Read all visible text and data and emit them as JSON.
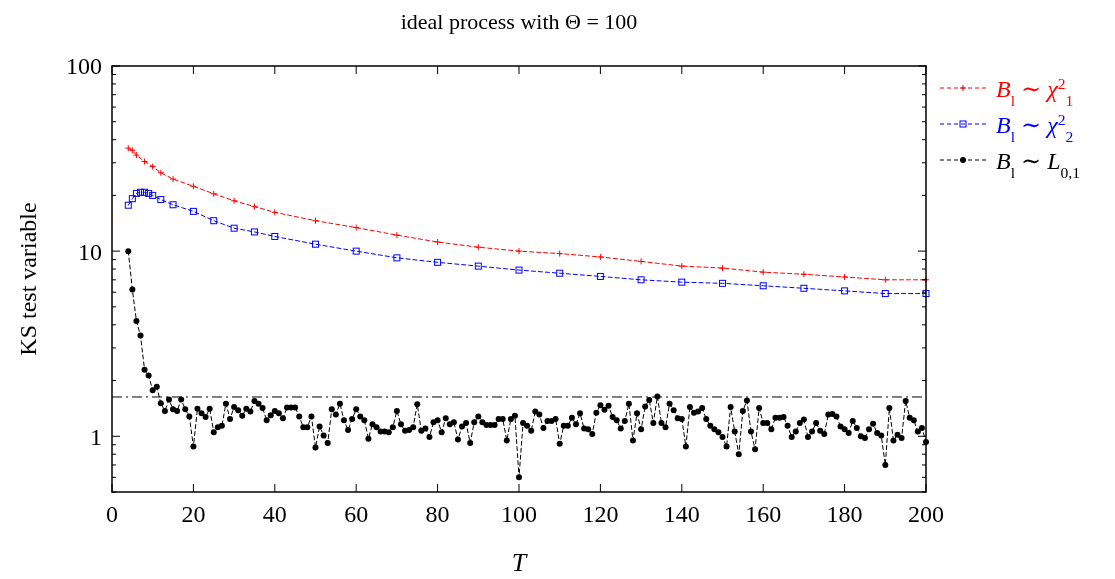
{
  "chart_data": {
    "type": "line",
    "title": "ideal process with Θ = 100",
    "xlabel": "T",
    "ylabel": "KS test variable",
    "log": "y",
    "xlim": [
      0,
      200
    ],
    "xticks": [
      0,
      20,
      40,
      60,
      80,
      100,
      120,
      140,
      160,
      180,
      200
    ],
    "ylim": [
      0.5,
      100
    ],
    "yticks": [
      {
        "value": 0.5,
        "label": null
      },
      {
        "value": 0.6,
        "label": null
      },
      {
        "value": 0.7,
        "label": null
      },
      {
        "value": 0.8,
        "label": null
      },
      {
        "value": 0.9,
        "label": null
      },
      1,
      {
        "value": 2,
        "label": null
      },
      {
        "value": 3,
        "label": null
      },
      {
        "value": 4,
        "label": null
      },
      {
        "value": 5,
        "label": null
      },
      {
        "value": 6,
        "label": null
      },
      {
        "value": 7,
        "label": null
      },
      {
        "value": 8,
        "label": null
      },
      {
        "value": 9,
        "label": null
      },
      10,
      {
        "value": 20,
        "label": null
      },
      {
        "value": 30,
        "label": null
      },
      {
        "value": 40,
        "label": null
      },
      {
        "value": 50,
        "label": null
      },
      {
        "value": 60,
        "label": null
      },
      {
        "value": 70,
        "label": null
      },
      {
        "value": 80,
        "label": null
      },
      {
        "value": 90,
        "label": null
      },
      100
    ],
    "grid": false,
    "legend": "top right",
    "line_style": "dashed",
    "ref_lines": [
      {
        "axis": "y",
        "value": 1.63,
        "color": "#000000",
        "line_style": "dashed"
      }
    ],
    "series": [
      {
        "name": "B$_{l}$ ∼ χ$^{2}$$_{1}$",
        "color": "#ff0000",
        "marker": "cross",
        "x": [
          4,
          5,
          6,
          8,
          10,
          12,
          15,
          20,
          25,
          30,
          35,
          40,
          50,
          60,
          70,
          80,
          90,
          100,
          110,
          120,
          130,
          140,
          150,
          160,
          170,
          180,
          190,
          200
        ],
        "values": [
          36,
          35,
          33,
          30.5,
          28.6,
          26.5,
          24.5,
          22.4,
          20.4,
          18.7,
          17.4,
          16.2,
          14.6,
          13.4,
          12.2,
          11.2,
          10.5,
          10,
          9.7,
          9.3,
          8.8,
          8.3,
          8.1,
          7.7,
          7.5,
          7.25,
          7,
          7
        ]
      },
      {
        "name": "B$_{l}$ ∼ χ$^{2}$$_{2}$",
        "color": "#0000ff",
        "marker": "square",
        "x": [
          4,
          5,
          6,
          7,
          8,
          9,
          10,
          12,
          15,
          20,
          25,
          30,
          35,
          40,
          50,
          60,
          70,
          80,
          90,
          100,
          110,
          120,
          130,
          140,
          150,
          160,
          170,
          180,
          190,
          200
        ],
        "values": [
          17.7,
          19.2,
          20.5,
          20.8,
          20.8,
          20.5,
          20,
          19,
          17.8,
          16.4,
          14.6,
          13.3,
          12.7,
          12,
          10.9,
          10,
          9.2,
          8.7,
          8.3,
          7.9,
          7.6,
          7.3,
          7,
          6.8,
          6.7,
          6.5,
          6.3,
          6.1,
          5.9,
          5.9
        ]
      },
      {
        "name": "B$_{l}$ ∼ L$_{0,1}$",
        "color": "#000000",
        "marker": "circle",
        "x": [
          4,
          5,
          6,
          7,
          8,
          9,
          10,
          11,
          12,
          13,
          14,
          15,
          16,
          17,
          18,
          19,
          20,
          21,
          22,
          23,
          24,
          25,
          26,
          27,
          28,
          29,
          30,
          31,
          32,
          33,
          34,
          35,
          36,
          37,
          38,
          39,
          40,
          41,
          42,
          43,
          44,
          45,
          46,
          47,
          48,
          49,
          50,
          51,
          52,
          53,
          54,
          55,
          56,
          57,
          58,
          59,
          60,
          61,
          62,
          63,
          64,
          65,
          66,
          67,
          68,
          69,
          70,
          71,
          72,
          73,
          74,
          75,
          76,
          77,
          78,
          79,
          80,
          81,
          82,
          83,
          84,
          85,
          86,
          87,
          88,
          89,
          90,
          91,
          92,
          93,
          94,
          95,
          96,
          97,
          98,
          99,
          100,
          101,
          102,
          103,
          104,
          105,
          106,
          107,
          108,
          109,
          110,
          111,
          112,
          113,
          114,
          115,
          116,
          117,
          118,
          119,
          120,
          121,
          122,
          123,
          124,
          125,
          126,
          127,
          128,
          129,
          130,
          131,
          132,
          133,
          134,
          135,
          136,
          137,
          138,
          139,
          140,
          141,
          142,
          143,
          144,
          145,
          146,
          147,
          148,
          149,
          150,
          151,
          152,
          153,
          154,
          155,
          156,
          157,
          158,
          159,
          160,
          161,
          162,
          163,
          164,
          165,
          166,
          167,
          168,
          169,
          170,
          171,
          172,
          173,
          174,
          175,
          176,
          177,
          178,
          179,
          180,
          181,
          182,
          183,
          184,
          185,
          186,
          187,
          188,
          189,
          190,
          191,
          192,
          193,
          194,
          195,
          196,
          197,
          198,
          199,
          200
        ],
        "values": [
          10,
          6.2,
          4.2,
          3.5,
          2.29,
          2.13,
          1.77,
          1.85,
          1.51,
          1.37,
          1.58,
          1.4,
          1.37,
          1.58,
          1.4,
          1.28,
          0.88,
          1.41,
          1.33,
          1.27,
          1.41,
          1.05,
          1.12,
          1.14,
          1.5,
          1.24,
          1.44,
          1.38,
          1.29,
          1.41,
          1.36,
          1.55,
          1.5,
          1.42,
          1.22,
          1.3,
          1.37,
          1.33,
          1.25,
          1.43,
          1.43,
          1.43,
          1.28,
          1.12,
          1.12,
          1.28,
          0.87,
          1.13,
          1.01,
          0.92,
          1.4,
          1.31,
          1.5,
          1.22,
          1.08,
          1.24,
          1.4,
          1.28,
          1.22,
          0.97,
          1.16,
          1.12,
          1.06,
          1.06,
          1.05,
          1.12,
          1.37,
          1.16,
          1.07,
          1.08,
          1.12,
          1.49,
          1.07,
          1.1,
          0.99,
          1.19,
          1.22,
          1.05,
          1.25,
          1.16,
          1.19,
          0.96,
          1.13,
          1.18,
          0.92,
          1.19,
          1.28,
          1.19,
          1.15,
          1.15,
          1.15,
          1.24,
          1.24,
          0.95,
          1.24,
          1.29,
          0.6,
          1.18,
          1.14,
          1.07,
          1.36,
          1.31,
          1.11,
          1.21,
          1.21,
          1.24,
          0.91,
          1.14,
          1.14,
          1.26,
          1.16,
          1.33,
          1.1,
          1.09,
          1.03,
          1.34,
          1.47,
          1.39,
          1.46,
          1.27,
          1.22,
          1.1,
          1.21,
          1.5,
          0.95,
          1.33,
          1.09,
          1.45,
          1.57,
          1.18,
          1.64,
          1.18,
          1.12,
          1.5,
          1.38,
          1.25,
          1.24,
          0.88,
          1.44,
          1.34,
          1.36,
          1.42,
          1.24,
          1.14,
          1.09,
          1.05,
          0.99,
          0.88,
          1.44,
          1.06,
          0.8,
          1.37,
          1.56,
          1.06,
          0.85,
          1.42,
          1.18,
          1.18,
          1.09,
          1.26,
          1.26,
          1.27,
          1.14,
          0.99,
          1.06,
          1.18,
          1.23,
          0.99,
          1.06,
          1.18,
          1.07,
          1.03,
          1.31,
          1.32,
          1.28,
          1.13,
          1.09,
          1.04,
          1.21,
          1.11,
          1,
          0.98,
          1.09,
          1.17,
          1.04,
          1.01,
          0.7,
          1.42,
          0.95,
          1.02,
          0.98,
          1.55,
          1.26,
          1.22,
          1.06,
          1.11,
          0.93
        ]
      }
    ]
  }
}
